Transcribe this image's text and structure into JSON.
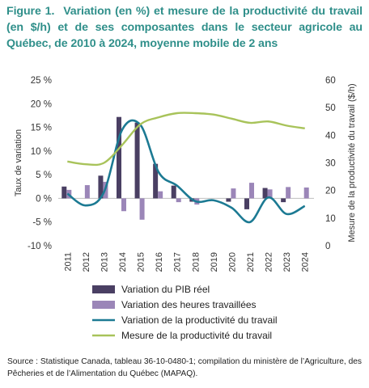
{
  "title": {
    "figure": "Figure 1.",
    "text": "Variation (en %) et mesure de la productivité du travail (en $/h) et de ses composantes dans le secteur agricole au Québec, de 2010 à 2024, moyenne mobile de 2 ans"
  },
  "source": "Source : Statistique Canada, tableau 36-10-0480-1; compilation du ministère de l’Agriculture, des Pêcheries et de l’Alimentation du Québec (MAPAQ).",
  "colors": {
    "title": "#2f8f8a",
    "pib": "#4a3f63",
    "heures": "#9b86b8",
    "variation_line": "#1c7a93",
    "mesure_line": "#a8c35a"
  },
  "chart_data": {
    "type": "bar+line",
    "categories": [
      "2011",
      "2012",
      "2013",
      "2014",
      "2015",
      "2016",
      "2017",
      "2018",
      "2019",
      "2020",
      "2021",
      "2022",
      "2023",
      "2024"
    ],
    "ylabel_left": "Taux de variation",
    "ylabel_right": "Mesure de la productivité du travail ($/h)",
    "ylim_left": [
      -10,
      25
    ],
    "ylim_right": [
      0,
      60
    ],
    "yticks_left": [
      "-10 %",
      "-5 %",
      "0 %",
      "5 %",
      "10 %",
      "15 %",
      "20 %",
      "25 %"
    ],
    "yticks_right": [
      "0",
      "10",
      "20",
      "30",
      "40",
      "50",
      "60"
    ],
    "grid": false,
    "legend_position": "bottom",
    "series": [
      {
        "name": "Variation du PIB réel",
        "kind": "bar",
        "axis": "left",
        "values": [
          2.5,
          0.0,
          4.8,
          17.2,
          16.0,
          7.3,
          2.7,
          -0.7,
          0.0,
          -0.7,
          -2.3,
          2.2,
          -0.8,
          0.0
        ]
      },
      {
        "name": "Variation des heures travaillées",
        "kind": "bar",
        "axis": "left",
        "values": [
          1.8,
          2.8,
          3.5,
          -2.7,
          -4.5,
          1.5,
          -0.8,
          -1.3,
          0.0,
          2.1,
          3.3,
          1.9,
          2.4,
          2.3
        ]
      },
      {
        "name": "Variation de la productivité du travail",
        "kind": "line",
        "axis": "left",
        "values": [
          1.0,
          -1.5,
          1.3,
          14.5,
          15.5,
          5.5,
          2.7,
          -0.6,
          -0.4,
          -2.0,
          -5.0,
          0.2,
          -3.3,
          -1.6
        ]
      },
      {
        "name": "Mesure de la productivité du travail",
        "kind": "line",
        "axis": "right",
        "values": [
          30.5,
          29.5,
          30.0,
          36.5,
          44.0,
          46.5,
          48.0,
          48.0,
          47.5,
          46.0,
          44.5,
          45.0,
          43.5,
          42.5
        ]
      }
    ]
  }
}
